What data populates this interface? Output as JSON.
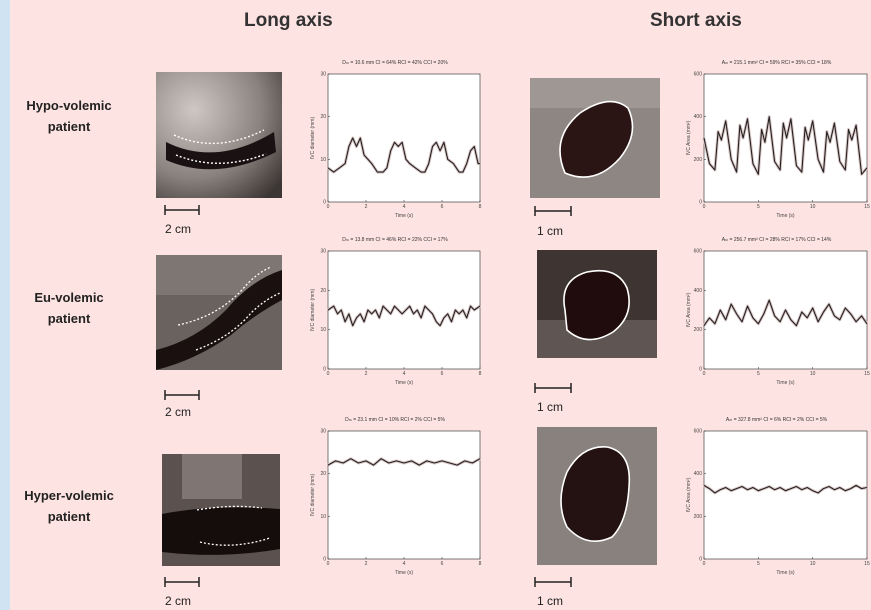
{
  "columns": {
    "long_axis": "Long axis",
    "short_axis": "Short axis"
  },
  "rows": [
    {
      "label_line1": "Hypo-volemic",
      "label_line2": "patient",
      "long_scale": "2 cm",
      "short_scale": "1 cm"
    },
    {
      "label_line1": "Eu-volemic",
      "label_line2": "patient",
      "long_scale": "2 cm",
      "short_scale": "1 cm"
    },
    {
      "label_line1": "Hyper-volemic",
      "label_line2": "patient",
      "long_scale": "2 cm",
      "short_scale": "1 cm"
    }
  ],
  "chart_data": [
    {
      "id": "hypo-long",
      "type": "line",
      "title": "Dₘ = 10.6 mm CI = 64% RCI = 42% CCI = 20%",
      "xlabel": "Time (s)",
      "ylabel": "IVC diameter (mm)",
      "xlim": [
        0,
        8
      ],
      "ylim": [
        0,
        30
      ],
      "xticks": [
        "0",
        "2",
        "4",
        "6",
        "8"
      ],
      "yticks": [
        "0",
        "10",
        "20",
        "30"
      ],
      "x": [
        0,
        0.3,
        0.6,
        0.9,
        1.1,
        1.3,
        1.5,
        1.7,
        1.9,
        2.1,
        2.3,
        2.6,
        2.9,
        3.1,
        3.3,
        3.5,
        3.7,
        3.9,
        4.1,
        4.3,
        4.6,
        4.9,
        5.1,
        5.3,
        5.5,
        5.7,
        5.9,
        6.1,
        6.3,
        6.6,
        6.9,
        7.1,
        7.3,
        7.5,
        7.7,
        7.9,
        8.0
      ],
      "y": [
        8,
        7,
        8,
        9,
        13,
        15,
        13,
        15,
        11,
        10,
        9,
        7,
        7,
        8,
        12,
        14,
        13,
        14,
        10,
        9,
        8,
        7,
        7,
        9,
        13,
        14,
        12,
        14,
        10,
        9,
        7,
        7,
        9,
        12,
        13,
        9,
        9
      ]
    },
    {
      "id": "eu-long",
      "type": "line",
      "title": "Dₘ = 13.8 mm CI = 46% RCI = 22% CCI = 17%",
      "xlabel": "Time (s)",
      "ylabel": "IVC diameter (mm)",
      "xlim": [
        0,
        8
      ],
      "ylim": [
        0,
        30
      ],
      "xticks": [
        "0",
        "2",
        "4",
        "6",
        "8"
      ],
      "yticks": [
        "0",
        "10",
        "20",
        "30"
      ],
      "x": [
        0,
        0.3,
        0.5,
        0.7,
        0.9,
        1.1,
        1.3,
        1.5,
        1.7,
        1.9,
        2.1,
        2.3,
        2.5,
        2.7,
        2.9,
        3.1,
        3.3,
        3.5,
        3.7,
        3.9,
        4.1,
        4.3,
        4.5,
        4.7,
        4.9,
        5.1,
        5.3,
        5.5,
        5.7,
        5.9,
        6.1,
        6.3,
        6.5,
        6.7,
        6.9,
        7.1,
        7.3,
        7.5,
        7.7,
        8.0
      ],
      "y": [
        15,
        16,
        14,
        15,
        12,
        14,
        11,
        13,
        14,
        12,
        15,
        14,
        15,
        13,
        16,
        15,
        14,
        16,
        15,
        14,
        15,
        16,
        14,
        15,
        13,
        16,
        15,
        14,
        12,
        11,
        13,
        14,
        12,
        15,
        14,
        15,
        13,
        16,
        15,
        16
      ]
    },
    {
      "id": "hyper-long",
      "type": "line",
      "title": "Dₘ = 23.1 mm CI = 10% RCI = 2% CCI = 5%",
      "xlabel": "Time (s)",
      "ylabel": "IVC diameter (mm)",
      "xlim": [
        0,
        8
      ],
      "ylim": [
        0,
        30
      ],
      "xticks": [
        "0",
        "2",
        "4",
        "6",
        "8"
      ],
      "yticks": [
        "0",
        "10",
        "20",
        "30"
      ],
      "x": [
        0,
        0.4,
        0.8,
        1.2,
        1.6,
        2.0,
        2.4,
        2.8,
        3.2,
        3.6,
        4.0,
        4.4,
        4.8,
        5.2,
        5.6,
        6.0,
        6.4,
        6.8,
        7.2,
        7.6,
        8.0
      ],
      "y": [
        22,
        23,
        22.5,
        23.5,
        22.5,
        23,
        22,
        23.5,
        22.5,
        23,
        22.5,
        23,
        22,
        23,
        22.5,
        23,
        22.5,
        22,
        23,
        22.5,
        23.5
      ]
    },
    {
      "id": "hypo-short",
      "type": "line",
      "title": "Aₘ = 215.1 mm² CI = 59% RCI = 35% CCI = 18%",
      "xlabel": "Time (s)",
      "ylabel": "IVC Area (mm²)",
      "xlim": [
        0,
        15
      ],
      "ylim": [
        0,
        600
      ],
      "xticks": [
        "0",
        "5",
        "10",
        "15"
      ],
      "yticks": [
        "0",
        "200",
        "400",
        "600"
      ],
      "x": [
        0,
        0.5,
        1.0,
        1.3,
        1.6,
        2.0,
        2.5,
        3.0,
        3.3,
        3.6,
        4.0,
        4.5,
        5.0,
        5.3,
        5.6,
        6.0,
        6.5,
        7.0,
        7.3,
        7.6,
        8.0,
        8.5,
        9.0,
        9.3,
        9.6,
        10.0,
        10.5,
        11.0,
        11.3,
        11.6,
        12.0,
        12.5,
        13.0,
        13.3,
        13.6,
        14.0,
        14.5,
        15.0
      ],
      "y": [
        300,
        180,
        150,
        330,
        290,
        380,
        200,
        140,
        360,
        300,
        390,
        180,
        130,
        340,
        280,
        400,
        190,
        150,
        370,
        300,
        390,
        170,
        140,
        350,
        290,
        380,
        200,
        140,
        330,
        280,
        370,
        190,
        150,
        340,
        290,
        360,
        130,
        160
      ]
    },
    {
      "id": "eu-short",
      "type": "line",
      "title": "Aₘ = 256.7 mm² CI = 28% RCI = 17% CCI = 14%",
      "xlabel": "Time (s)",
      "ylabel": "IVC Area (mm²)",
      "xlim": [
        0,
        15
      ],
      "ylim": [
        0,
        600
      ],
      "xticks": [
        "0",
        "5",
        "10",
        "15"
      ],
      "yticks": [
        "0",
        "200",
        "400",
        "600"
      ],
      "x": [
        0,
        0.5,
        1.0,
        1.5,
        2.0,
        2.5,
        3.0,
        3.5,
        4.0,
        4.5,
        5.0,
        5.5,
        6.0,
        6.5,
        7.0,
        7.5,
        8.0,
        8.5,
        9.0,
        9.5,
        10.0,
        10.5,
        11.0,
        11.5,
        12.0,
        12.5,
        13.0,
        13.5,
        14.0,
        14.5,
        15.0
      ],
      "y": [
        220,
        260,
        230,
        300,
        250,
        330,
        280,
        240,
        320,
        260,
        230,
        280,
        350,
        270,
        240,
        300,
        250,
        220,
        290,
        260,
        310,
        240,
        290,
        330,
        270,
        250,
        310,
        280,
        240,
        270,
        230
      ]
    },
    {
      "id": "hyper-short",
      "type": "line",
      "title": "Aₘ = 327.8 mm² CI = 6% RCI = 2% CCI = 5%",
      "xlabel": "Time (s)",
      "ylabel": "IVC Area (mm²)",
      "xlim": [
        0,
        15
      ],
      "ylim": [
        0,
        600
      ],
      "xticks": [
        "0",
        "5",
        "10",
        "15"
      ],
      "yticks": [
        "0",
        "200",
        "400",
        "600"
      ],
      "x": [
        0,
        0.5,
        1.0,
        1.5,
        2.0,
        2.5,
        3.0,
        3.5,
        4.0,
        4.5,
        5.0,
        5.5,
        6.0,
        6.5,
        7.0,
        7.5,
        8.0,
        8.5,
        9.0,
        9.5,
        10.0,
        10.5,
        11.0,
        11.5,
        12.0,
        12.5,
        13.0,
        13.5,
        14.0,
        14.5,
        15.0
      ],
      "y": [
        345,
        330,
        310,
        325,
        335,
        320,
        330,
        340,
        325,
        335,
        320,
        330,
        340,
        325,
        335,
        320,
        330,
        340,
        325,
        335,
        320,
        310,
        330,
        340,
        325,
        335,
        320,
        330,
        345,
        330,
        335
      ]
    }
  ]
}
